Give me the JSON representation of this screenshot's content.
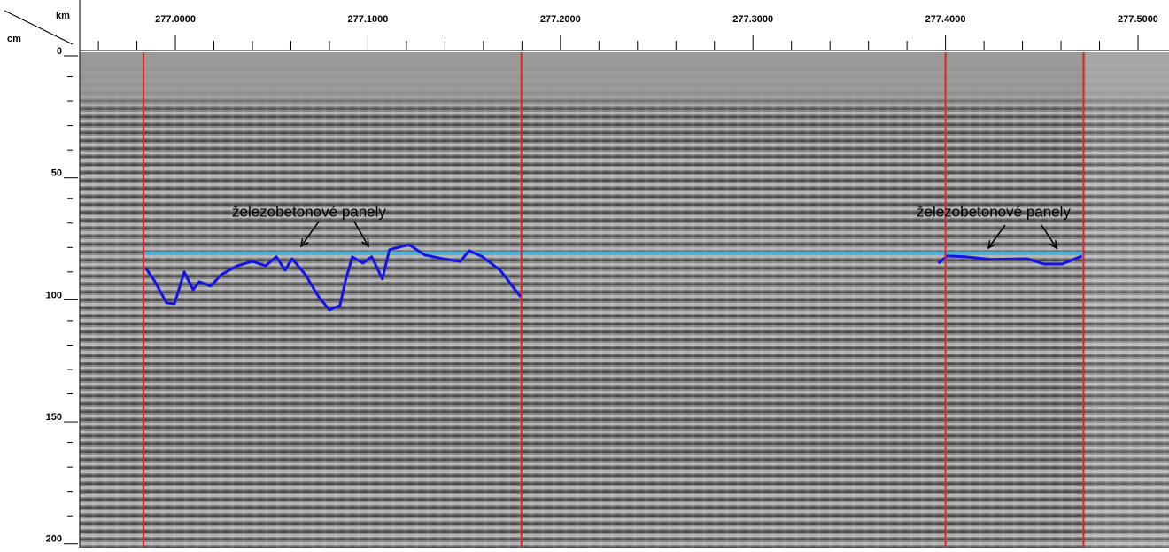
{
  "chart_data": {
    "type": "radargram",
    "x_label": "km",
    "y_label": "cm",
    "xlim": [
      276.9503,
      277.5161
    ],
    "ylim": [
      0,
      203
    ],
    "xticks": [
      {
        "value": 277.0,
        "label": "277.0000"
      },
      {
        "value": 277.1,
        "label": "277.1000"
      },
      {
        "value": 277.2,
        "label": "277.2000"
      },
      {
        "value": 277.3,
        "label": "277.3000"
      },
      {
        "value": 277.4,
        "label": "277.4000"
      },
      {
        "value": 277.5,
        "label": "277.5000"
      }
    ],
    "x_minor_ticks": [
      276.96,
      276.98,
      277.02,
      277.04,
      277.06,
      277.08,
      277.12,
      277.14,
      277.16,
      277.18,
      277.22,
      277.24,
      277.26,
      277.28,
      277.32,
      277.34,
      277.36,
      277.38,
      277.42,
      277.44,
      277.46,
      277.48
    ],
    "yticks": [
      0,
      50,
      100,
      150,
      200
    ],
    "y_minor_ticks": [
      10,
      20,
      30,
      40,
      60,
      70,
      80,
      90,
      110,
      120,
      130,
      140,
      160,
      170,
      180,
      190
    ],
    "section_lines": {
      "color": "#e52222",
      "x": [
        276.9834,
        277.1797,
        277.4,
        277.4717
      ]
    },
    "reference_line": {
      "color": "#4db6dc",
      "y": 82.4,
      "x": [
        276.9834,
        277.4717
      ]
    },
    "series": [
      {
        "color": "#1414e6",
        "x": [
          276.9848,
          276.9894,
          276.9954,
          276.9995,
          277.0046,
          277.0092,
          277.0124,
          277.0183,
          277.0239,
          277.0321,
          277.04,
          277.0469,
          277.0524,
          277.057,
          277.0606,
          277.0675,
          277.0744,
          277.08,
          277.0855,
          277.0882,
          277.0919,
          277.0974,
          277.102,
          277.1075,
          277.1112,
          277.1213,
          277.1296,
          277.1388,
          277.148,
          277.1526,
          277.1595,
          277.1687,
          277.1793
        ],
        "values": [
          88.6,
          94.0,
          102.7,
          103.1,
          90.0,
          97.3,
          94.0,
          95.8,
          91.1,
          87.5,
          85.7,
          87.5,
          83.8,
          89.3,
          84.6,
          91.1,
          100.2,
          105.6,
          103.8,
          94.0,
          83.8,
          86.4,
          83.8,
          92.9,
          80.9,
          78.8,
          83.1,
          84.6,
          85.7,
          81.3,
          83.8,
          89.3,
          100.2
        ]
      },
      {
        "color": "#1414e6",
        "x": [
          277.3963,
          277.4009,
          277.4101,
          277.4239,
          277.4423,
          277.4514,
          277.4606,
          277.4708
        ],
        "values": [
          86.4,
          83.5,
          83.8,
          84.9,
          84.6,
          86.8,
          86.8,
          83.5
        ]
      }
    ],
    "annotations": [
      {
        "text": "železobetonové panely"
      },
      {
        "text": "železobetonové panely"
      }
    ]
  }
}
